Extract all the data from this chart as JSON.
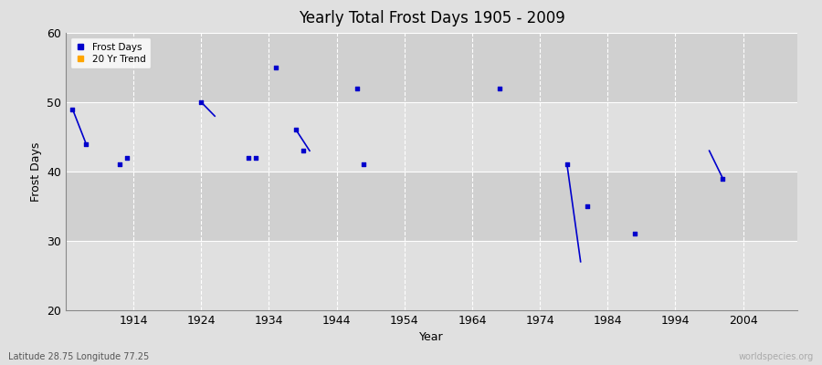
{
  "title": "Yearly Total Frost Days 1905 - 2009",
  "xlabel": "Year",
  "ylabel": "Frost Days",
  "subtitle": "Latitude 28.75 Longitude 77.25",
  "watermark": "worldspecies.org",
  "xlim": [
    1904,
    2012
  ],
  "ylim": [
    20,
    60
  ],
  "yticks": [
    20,
    30,
    40,
    50,
    60
  ],
  "xticks": [
    1914,
    1924,
    1934,
    1944,
    1954,
    1964,
    1974,
    1984,
    1994,
    2004
  ],
  "scatter_x": [
    1905,
    1907,
    1912,
    1913,
    1924,
    1931,
    1932,
    1935,
    1938,
    1939,
    1947,
    1948,
    1968,
    1978,
    1981,
    1988,
    2001
  ],
  "scatter_y": [
    49,
    44,
    41,
    42,
    50,
    42,
    42,
    55,
    46,
    43,
    52,
    41,
    52,
    41,
    35,
    31,
    39
  ],
  "trend_segments": [
    {
      "x": [
        1905,
        1907
      ],
      "y": [
        49,
        44
      ]
    },
    {
      "x": [
        1924,
        1926
      ],
      "y": [
        50,
        48
      ]
    },
    {
      "x": [
        1938,
        1940
      ],
      "y": [
        46,
        43
      ]
    },
    {
      "x": [
        1978,
        1980
      ],
      "y": [
        41,
        27
      ]
    },
    {
      "x": [
        1999,
        2001
      ],
      "y": [
        43,
        39
      ]
    }
  ],
  "scatter_color": "#0000cc",
  "trend_color": "#0000cc",
  "bg_color": "#e0e0e0",
  "band_colors": [
    "#e0e0e0",
    "#d0d0d0",
    "#e0e0e0",
    "#d0d0d0"
  ],
  "grid_color_v": "#ffffff",
  "grid_color_h": "#ffffff",
  "legend_frost_color": "#0000cc",
  "legend_trend_color": "#ffa500"
}
